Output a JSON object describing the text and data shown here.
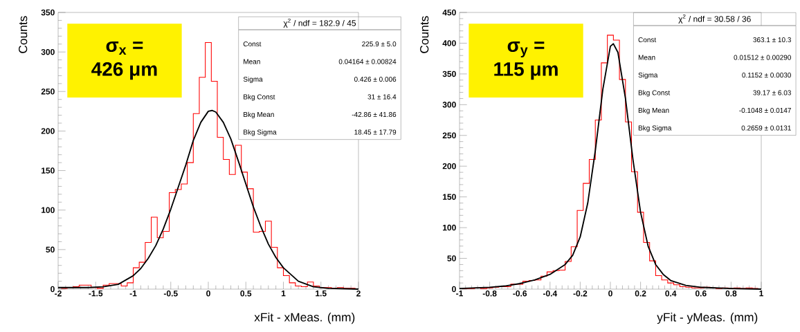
{
  "chart_data": [
    {
      "type": "histogram",
      "xlabel": "xFit - xMeas. (mm)",
      "ylabel": "Counts",
      "color": "#ff0000",
      "bins": [
        -1.96,
        -1.88,
        -1.8,
        -1.72,
        -1.64,
        -1.56,
        -1.48,
        -1.4,
        -1.32,
        -1.24,
        -1.16,
        -1.08,
        -1.0,
        -0.92,
        -0.84,
        -0.76,
        -0.68,
        -0.6,
        -0.52,
        -0.44,
        -0.36,
        -0.28,
        -0.2,
        -0.12,
        -0.04,
        0.04,
        0.12,
        0.2,
        0.28,
        0.36,
        0.44,
        0.52,
        0.6,
        0.68,
        0.76,
        0.84,
        0.92,
        1.0,
        1.08,
        1.16,
        1.24,
        1.32,
        1.4,
        1.48,
        1.56,
        1.64,
        1.72,
        1.8,
        1.88,
        1.96
      ],
      "values": [
        1,
        2,
        3,
        5,
        5,
        2,
        1,
        5,
        7,
        7,
        4,
        8,
        27,
        34,
        59,
        91,
        65,
        73,
        122,
        126,
        133,
        160,
        222,
        268,
        312,
        263,
        192,
        164,
        145,
        182,
        148,
        127,
        72,
        73,
        86,
        53,
        27,
        17,
        8,
        4,
        3,
        9,
        4,
        2,
        2,
        1,
        2,
        1,
        1
      ],
      "series": [
        {
          "type": "line",
          "color": "#000000",
          "x": [
            -2,
            -1.6,
            -1.4,
            -1.2,
            -1.0,
            -0.9,
            -0.8,
            -0.7,
            -0.6,
            -0.5,
            -0.4,
            -0.3,
            -0.2,
            -0.1,
            0,
            0.05,
            0.1,
            0.2,
            0.3,
            0.4,
            0.5,
            0.6,
            0.7,
            0.8,
            0.9,
            1.0,
            1.2,
            1.4,
            1.6,
            2.0
          ],
          "values": [
            2,
            2,
            3,
            6,
            17,
            26,
            39,
            55,
            76,
            101,
            129,
            157,
            188,
            211,
            225,
            226,
            224,
            211,
            190,
            162,
            133,
            104,
            79,
            57,
            40,
            27,
            10,
            3,
            1,
            0
          ]
        }
      ],
      "xlim": [
        -2,
        2
      ],
      "ylim": [
        0,
        350
      ],
      "xticks": [
        -2,
        -1.5,
        -1,
        -0.5,
        0,
        0.5,
        1,
        1.5,
        2
      ],
      "yticks": [
        0,
        50,
        100,
        150,
        200,
        250,
        300,
        350
      ],
      "annotations": [
        "σ$_{x}$ =",
        "426 μm",
        "χ$^{2}$ / ndf = 182.9 / 45",
        "Const",
        "225.9 ± 5.0",
        "Mean",
        "0.04164 ± 0.00824",
        "Sigma",
        "0.426 ± 0.006",
        "Bkg Const",
        "31 ± 16.4",
        "Bkg Mean",
        "-42.86 ± 41.86",
        "Bkg Sigma",
        "18.45 ± 17.79"
      ]
    },
    {
      "type": "histogram",
      "xlabel": "yFit - yMeas. (mm)",
      "ylabel": "Counts",
      "color": "#ff0000",
      "bins": [
        -0.98,
        -0.94,
        -0.9,
        -0.86,
        -0.82,
        -0.78,
        -0.74,
        -0.7,
        -0.66,
        -0.62,
        -0.58,
        -0.54,
        -0.5,
        -0.46,
        -0.42,
        -0.38,
        -0.34,
        -0.3,
        -0.26,
        -0.22,
        -0.18,
        -0.14,
        -0.1,
        -0.06,
        -0.02,
        0.02,
        0.06,
        0.1,
        0.14,
        0.18,
        0.22,
        0.26,
        0.3,
        0.34,
        0.38,
        0.42,
        0.46,
        0.5,
        0.54,
        0.58,
        0.62,
        0.66,
        0.7,
        0.74,
        0.78,
        0.82,
        0.86,
        0.9,
        0.94,
        0.98
      ],
      "values": [
        1,
        1,
        2,
        1,
        2,
        3,
        4,
        4,
        8,
        8,
        13,
        14,
        15,
        21,
        28,
        30,
        31,
        45,
        69,
        128,
        172,
        211,
        275,
        368,
        413,
        405,
        341,
        272,
        191,
        125,
        76,
        46,
        22,
        15,
        10,
        7,
        4,
        3,
        2,
        2,
        3,
        2,
        1,
        2,
        1,
        2,
        1,
        2,
        1
      ],
      "series": [
        {
          "type": "line",
          "color": "#000000",
          "x": [
            -1,
            -0.8,
            -0.7,
            -0.6,
            -0.5,
            -0.4,
            -0.3,
            -0.25,
            -0.2,
            -0.15,
            -0.1,
            -0.05,
            0,
            0.02,
            0.05,
            0.1,
            0.15,
            0.2,
            0.25,
            0.3,
            0.35,
            0.4,
            0.5,
            0.6,
            0.8,
            1.0
          ],
          "values": [
            1,
            3,
            5,
            9,
            15,
            24,
            40,
            55,
            85,
            140,
            225,
            325,
            395,
            399,
            385,
            310,
            210,
            125,
            70,
            40,
            24,
            14,
            6,
            3,
            1,
            0
          ]
        }
      ],
      "xlim": [
        -1,
        1
      ],
      "ylim": [
        0,
        450
      ],
      "xticks": [
        -1,
        -0.8,
        -0.6,
        -0.4,
        -0.2,
        0,
        0.2,
        0.4,
        0.6,
        0.8,
        1
      ],
      "yticks": [
        0,
        50,
        100,
        150,
        200,
        250,
        300,
        350,
        400,
        450
      ],
      "annotations": [
        "σ$_{y}$ =",
        "115 μm",
        "χ$^{2}$ / ndf = 30.58 / 36",
        "Const",
        "363.1 ± 10.3",
        "Mean",
        "0.01512 ± 0.00290",
        "Sigma",
        "0.1152 ± 0.0030",
        "Bkg Const",
        "39.17 ± 6.03",
        "Bkg Mean",
        "-0.1048 ± 0.0147",
        "Bkg Sigma",
        "0.2659 ± 0.0131"
      ]
    }
  ]
}
